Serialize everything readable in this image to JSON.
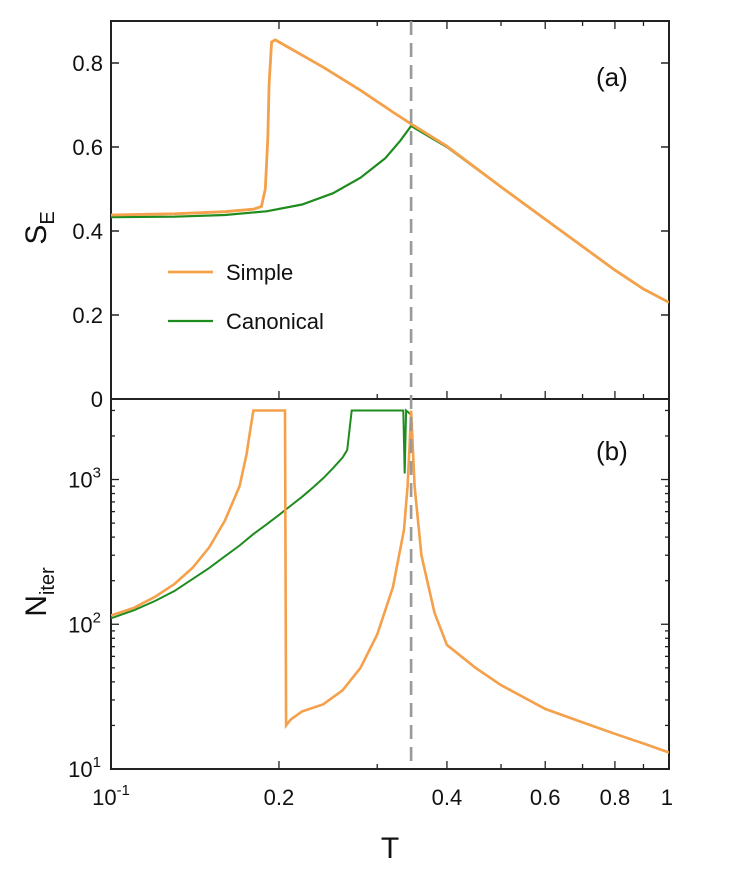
{
  "colors": {
    "simple": "#f5a04a",
    "canonical": "#1f8c1f",
    "vline": "#999999",
    "axis": "#222222"
  },
  "shared": {
    "xlabel": "T",
    "x_scale": "log",
    "xlim": [
      0.1,
      1
    ],
    "x_tick_labels": [
      {
        "value": 0.1,
        "base": "10",
        "exp": "-1"
      },
      {
        "value": 0.2,
        "label": "0.2"
      },
      {
        "value": 0.4,
        "label": "0.4"
      },
      {
        "value": 0.6,
        "label": "0.6"
      },
      {
        "value": 0.8,
        "label": "0.8"
      },
      {
        "value": 1,
        "label": "1"
      }
    ],
    "vertical_dashed_line_x": 0.345
  },
  "panels": {
    "a": {
      "label": "(a)",
      "ylabel_main": "S",
      "ylabel_sub": "E",
      "ylim": [
        0,
        0.9
      ],
      "y_tick_labels": [
        {
          "value": 0,
          "label": "0"
        },
        {
          "value": 0.2,
          "label": "0.2"
        },
        {
          "value": 0.4,
          "label": "0.4"
        },
        {
          "value": 0.6,
          "label": "0.6"
        },
        {
          "value": 0.8,
          "label": "0.8"
        }
      ],
      "legend": {
        "simple": "Simple",
        "canonical": "Canonical"
      }
    },
    "b": {
      "label": "(b)",
      "ylabel_main": "N",
      "ylabel_sub": "iter",
      "ylim": [
        10,
        3600
      ],
      "y_tick_labels": [
        {
          "value": 10,
          "base": "10",
          "exp": "1"
        },
        {
          "value": 100,
          "base": "10",
          "exp": "2"
        },
        {
          "value": 1000,
          "base": "10",
          "exp": "3"
        }
      ]
    }
  },
  "chart_data": [
    {
      "type": "line",
      "panel": "(a)",
      "x_scale": "log",
      "xlim": [
        0.1,
        1
      ],
      "ylim": [
        0,
        0.9
      ],
      "series": [
        {
          "name": "Simple",
          "x": [
            0.1,
            0.13,
            0.16,
            0.18,
            0.186,
            0.189,
            0.191,
            0.192,
            0.194,
            0.197,
            0.2,
            0.24,
            0.28,
            0.32,
            0.345,
            0.4,
            0.5,
            0.6,
            0.7,
            0.8,
            0.9,
            1.0
          ],
          "y": [
            0.438,
            0.441,
            0.446,
            0.452,
            0.458,
            0.5,
            0.62,
            0.75,
            0.85,
            0.855,
            0.85,
            0.79,
            0.735,
            0.683,
            0.655,
            0.602,
            0.505,
            0.428,
            0.363,
            0.307,
            0.262,
            0.23
          ]
        },
        {
          "name": "Canonical",
          "x": [
            0.1,
            0.13,
            0.16,
            0.19,
            0.22,
            0.25,
            0.28,
            0.31,
            0.33,
            0.345,
            0.4,
            0.5,
            0.6,
            0.7,
            0.8,
            0.9,
            1.0
          ],
          "y": [
            0.433,
            0.434,
            0.438,
            0.447,
            0.463,
            0.49,
            0.527,
            0.573,
            0.615,
            0.65,
            0.6,
            0.505,
            0.428,
            0.363,
            0.307,
            0.262,
            0.23
          ]
        }
      ]
    },
    {
      "type": "line",
      "panel": "(b)",
      "x_scale": "log",
      "y_scale": "log",
      "xlim": [
        0.1,
        1
      ],
      "ylim": [
        10,
        3600
      ],
      "series": [
        {
          "name": "Simple",
          "x": [
            0.1,
            0.11,
            0.12,
            0.13,
            0.14,
            0.15,
            0.16,
            0.17,
            0.175,
            0.178,
            0.18,
            0.2,
            0.205,
            0.206,
            0.21,
            0.22,
            0.24,
            0.26,
            0.28,
            0.3,
            0.32,
            0.335,
            0.34,
            0.343,
            0.345,
            0.35,
            0.36,
            0.38,
            0.4,
            0.45,
            0.5,
            0.6,
            0.7,
            0.8,
            0.9,
            1.0
          ],
          "y": [
            115,
            130,
            155,
            190,
            245,
            340,
            520,
            900,
            1500,
            2300,
            3000,
            3000,
            3000,
            20,
            22,
            25,
            28,
            35,
            50,
            85,
            180,
            450,
            900,
            1800,
            3000,
            900,
            300,
            120,
            72,
            50,
            38,
            26,
            21,
            17.5,
            15,
            13
          ]
        },
        {
          "name": "Canonical",
          "x": [
            0.1,
            0.11,
            0.12,
            0.13,
            0.14,
            0.15,
            0.16,
            0.17,
            0.18,
            0.19,
            0.2,
            0.21,
            0.22,
            0.23,
            0.24,
            0.25,
            0.26,
            0.265,
            0.27,
            0.28,
            0.3,
            0.32,
            0.334,
            0.336,
            0.338,
            0.345,
            0.35,
            0.36,
            0.38,
            0.4,
            0.45,
            0.5,
            0.6,
            0.7,
            0.8,
            0.9,
            1.0
          ],
          "y": [
            110,
            125,
            145,
            170,
            205,
            245,
            295,
            350,
            420,
            490,
            570,
            660,
            760,
            880,
            1020,
            1200,
            1420,
            1600,
            3000,
            3000,
            3000,
            3000,
            3000,
            1100,
            3000,
            2800,
            900,
            300,
            120,
            72,
            50,
            38,
            26,
            21,
            17.5,
            15,
            13
          ]
        }
      ]
    }
  ]
}
